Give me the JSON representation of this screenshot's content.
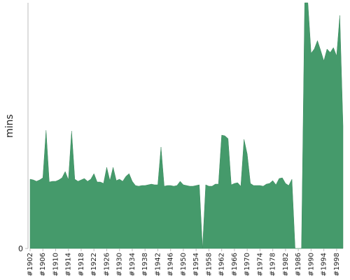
{
  "chart_data": {
    "type": "area",
    "y_label": "mins",
    "color": "#459a6b",
    "categories": [
      "#1902",
      null,
      null,
      null,
      "#1906",
      null,
      null,
      null,
      "#1910",
      null,
      null,
      null,
      "#1914",
      null,
      null,
      null,
      "#1918",
      null,
      null,
      null,
      "#1922",
      null,
      null,
      null,
      "#1926",
      null,
      null,
      null,
      "#1930",
      null,
      null,
      null,
      "#1934",
      null,
      null,
      null,
      "#1938",
      null,
      null,
      null,
      "#1942",
      null,
      null,
      null,
      "#1946",
      null,
      null,
      null,
      "#1950",
      null,
      null,
      null,
      "#1954",
      null,
      null,
      null,
      "#1958",
      null,
      null,
      null,
      "#1962",
      null,
      null,
      null,
      "#1966",
      null,
      null,
      null,
      "#1970",
      null,
      null,
      null,
      "#1974",
      null,
      null,
      null,
      "#1978",
      null,
      null,
      null,
      "#1982",
      null,
      null,
      null,
      "#1986",
      null,
      null,
      null,
      "#1990",
      null,
      null,
      null,
      "#1994",
      null,
      null,
      null,
      "#1998",
      null,
      null
    ],
    "values": [
      99,
      98,
      96,
      98,
      101,
      169,
      95,
      96,
      96,
      98,
      101,
      110,
      98,
      168,
      99,
      96,
      98,
      100,
      96,
      99,
      107,
      95,
      95,
      93,
      116,
      97,
      116,
      97,
      99,
      96,
      103,
      107,
      96,
      90,
      89,
      90,
      90,
      91,
      92,
      91,
      91,
      145,
      89,
      90,
      90,
      89,
      90,
      96,
      91,
      90,
      89,
      89,
      90,
      91,
      0,
      91,
      89,
      89,
      92,
      92,
      162,
      161,
      157,
      91,
      93,
      94,
      89,
      156,
      135,
      93,
      90,
      90,
      90,
      89,
      92,
      93,
      97,
      91,
      100,
      101,
      93,
      90,
      99,
      0,
      0,
      0,
      351,
      351,
      279,
      285,
      297,
      283,
      268,
      285,
      280,
      287,
      275,
      333,
      175
    ],
    "ylim": [
      0,
      351
    ],
    "yticks": [
      0
    ]
  }
}
